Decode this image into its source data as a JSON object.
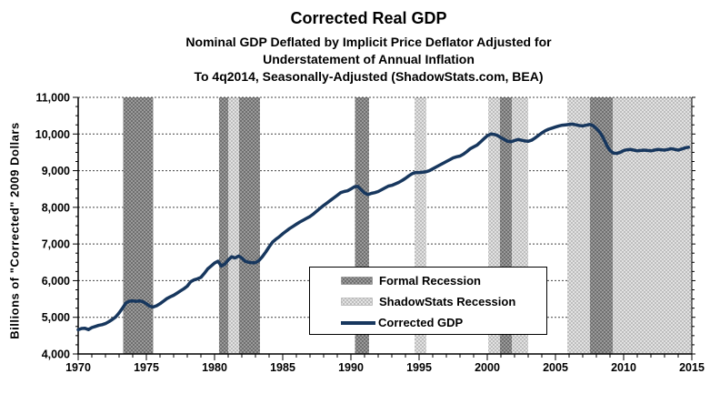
{
  "chart_data": {
    "type": "line",
    "title": "Corrected Real GDP",
    "subtitle_lines": [
      "Nominal GDP Deflated by Implicit Price Deflator Adjusted for",
      "Understatement of Annual Inflation",
      "To 4q2014, Seasonally-Adjusted (ShadowStats.com, BEA)"
    ],
    "ylabel": "Billions of \"Corrected\" 2009 Dollars",
    "xlabel": "",
    "x_range": [
      1970,
      2015
    ],
    "y_range": [
      4000,
      11000
    ],
    "x_major_tick_step": 5,
    "x_minor_tick_step": 1,
    "y_major_tick_step": 1000,
    "y_minor_tick_step": 250,
    "grid": "horizontal-dashed",
    "x_tick_labels": [
      "1970",
      "1975",
      "1980",
      "1985",
      "1990",
      "1995",
      "2000",
      "2005",
      "2010",
      "2015"
    ],
    "y_ticks": [
      {
        "v": 4000,
        "t": "4,000"
      },
      {
        "v": 5000,
        "t": "5,000"
      },
      {
        "v": 6000,
        "t": "6,000"
      },
      {
        "v": 7000,
        "t": "7,000"
      },
      {
        "v": 8000,
        "t": "8,000"
      },
      {
        "v": 9000,
        "t": "9,000"
      },
      {
        "v": 10000,
        "t": "10,000"
      },
      {
        "v": 11000,
        "t": "11,000"
      }
    ],
    "legend": {
      "position": "inside-lower-center",
      "items": [
        {
          "label": "Formal Recession",
          "swatch": "formal-pattern"
        },
        {
          "label": "ShadowStats Recession",
          "swatch": "shadow-pattern"
        },
        {
          "label": "Corrected GDP",
          "swatch": "line"
        }
      ]
    },
    "colors": {
      "line": "#17375E",
      "formal_dark": "#6f6f6f",
      "formal_light": "#9a9a9a",
      "shadow_dark": "#bdbdbd",
      "shadow_light": "#e2e2e2",
      "grid": "#444444",
      "axis": "#000000"
    },
    "formal_recessions": [
      [
        1973.3,
        1975.5
      ],
      [
        1980.33,
        1981.0
      ],
      [
        1981.8,
        1983.33
      ],
      [
        1990.3,
        1991.33
      ],
      [
        2000.93,
        2001.8
      ],
      [
        2007.53,
        2009.2
      ]
    ],
    "shadow_recessions": [
      [
        1981.0,
        1981.8
      ],
      [
        1994.67,
        1995.53
      ],
      [
        2000.07,
        2000.93
      ],
      [
        2001.8,
        2003.0
      ],
      [
        2005.87,
        2007.53
      ],
      [
        2009.2,
        2015.0
      ]
    ],
    "series": [
      {
        "name": "Corrected GDP",
        "points": [
          [
            1970.0,
            4660
          ],
          [
            1970.25,
            4695
          ],
          [
            1970.5,
            4700
          ],
          [
            1970.75,
            4665
          ],
          [
            1971.0,
            4720
          ],
          [
            1971.25,
            4750
          ],
          [
            1971.5,
            4780
          ],
          [
            1971.75,
            4800
          ],
          [
            1972.0,
            4830
          ],
          [
            1972.25,
            4880
          ],
          [
            1972.5,
            4940
          ],
          [
            1972.75,
            5010
          ],
          [
            1973.0,
            5120
          ],
          [
            1973.25,
            5250
          ],
          [
            1973.5,
            5390
          ],
          [
            1973.75,
            5440
          ],
          [
            1974.0,
            5450
          ],
          [
            1974.25,
            5435
          ],
          [
            1974.5,
            5450
          ],
          [
            1974.75,
            5425
          ],
          [
            1975.0,
            5370
          ],
          [
            1975.25,
            5300
          ],
          [
            1975.5,
            5280
          ],
          [
            1975.75,
            5315
          ],
          [
            1976.0,
            5370
          ],
          [
            1976.25,
            5440
          ],
          [
            1976.5,
            5510
          ],
          [
            1976.75,
            5560
          ],
          [
            1977.0,
            5600
          ],
          [
            1977.25,
            5660
          ],
          [
            1977.5,
            5720
          ],
          [
            1977.75,
            5780
          ],
          [
            1978.0,
            5850
          ],
          [
            1978.25,
            5970
          ],
          [
            1978.5,
            6020
          ],
          [
            1978.75,
            6050
          ],
          [
            1979.0,
            6090
          ],
          [
            1979.25,
            6200
          ],
          [
            1979.5,
            6320
          ],
          [
            1979.75,
            6400
          ],
          [
            1980.0,
            6480
          ],
          [
            1980.25,
            6530
          ],
          [
            1980.5,
            6400
          ],
          [
            1980.75,
            6450
          ],
          [
            1981.0,
            6560
          ],
          [
            1981.25,
            6650
          ],
          [
            1981.5,
            6620
          ],
          [
            1981.75,
            6670
          ],
          [
            1982.0,
            6620
          ],
          [
            1982.25,
            6530
          ],
          [
            1982.5,
            6500
          ],
          [
            1982.75,
            6490
          ],
          [
            1983.0,
            6490
          ],
          [
            1983.25,
            6550
          ],
          [
            1983.5,
            6650
          ],
          [
            1983.75,
            6780
          ],
          [
            1984.0,
            6920
          ],
          [
            1984.25,
            7050
          ],
          [
            1984.5,
            7130
          ],
          [
            1984.75,
            7200
          ],
          [
            1985.0,
            7280
          ],
          [
            1985.25,
            7350
          ],
          [
            1985.5,
            7420
          ],
          [
            1985.75,
            7480
          ],
          [
            1986.0,
            7540
          ],
          [
            1986.25,
            7600
          ],
          [
            1986.5,
            7650
          ],
          [
            1986.75,
            7700
          ],
          [
            1987.0,
            7750
          ],
          [
            1987.25,
            7820
          ],
          [
            1987.5,
            7900
          ],
          [
            1987.75,
            7980
          ],
          [
            1988.0,
            8050
          ],
          [
            1988.25,
            8120
          ],
          [
            1988.5,
            8190
          ],
          [
            1988.75,
            8260
          ],
          [
            1989.0,
            8330
          ],
          [
            1989.25,
            8400
          ],
          [
            1989.5,
            8430
          ],
          [
            1989.75,
            8450
          ],
          [
            1990.0,
            8500
          ],
          [
            1990.25,
            8560
          ],
          [
            1990.5,
            8570
          ],
          [
            1990.75,
            8480
          ],
          [
            1991.0,
            8390
          ],
          [
            1991.25,
            8350
          ],
          [
            1991.5,
            8380
          ],
          [
            1991.75,
            8400
          ],
          [
            1992.0,
            8430
          ],
          [
            1992.25,
            8480
          ],
          [
            1992.5,
            8530
          ],
          [
            1992.75,
            8580
          ],
          [
            1993.0,
            8600
          ],
          [
            1993.25,
            8640
          ],
          [
            1993.5,
            8680
          ],
          [
            1993.75,
            8730
          ],
          [
            1994.0,
            8790
          ],
          [
            1994.25,
            8860
          ],
          [
            1994.5,
            8920
          ],
          [
            1994.75,
            8950
          ],
          [
            1995.0,
            8950
          ],
          [
            1995.25,
            8960
          ],
          [
            1995.5,
            8970
          ],
          [
            1995.75,
            9000
          ],
          [
            1996.0,
            9050
          ],
          [
            1996.25,
            9100
          ],
          [
            1996.5,
            9150
          ],
          [
            1996.75,
            9200
          ],
          [
            1997.0,
            9250
          ],
          [
            1997.25,
            9300
          ],
          [
            1997.5,
            9350
          ],
          [
            1997.75,
            9380
          ],
          [
            1998.0,
            9400
          ],
          [
            1998.25,
            9450
          ],
          [
            1998.5,
            9520
          ],
          [
            1998.75,
            9600
          ],
          [
            1999.0,
            9650
          ],
          [
            1999.25,
            9700
          ],
          [
            1999.5,
            9780
          ],
          [
            1999.75,
            9870
          ],
          [
            2000.0,
            9950
          ],
          [
            2000.25,
            10000
          ],
          [
            2000.5,
            9990
          ],
          [
            2000.75,
            9960
          ],
          [
            2001.0,
            9900
          ],
          [
            2001.25,
            9850
          ],
          [
            2001.5,
            9800
          ],
          [
            2001.75,
            9790
          ],
          [
            2002.0,
            9820
          ],
          [
            2002.25,
            9850
          ],
          [
            2002.5,
            9830
          ],
          [
            2002.75,
            9810
          ],
          [
            2003.0,
            9800
          ],
          [
            2003.25,
            9830
          ],
          [
            2003.5,
            9890
          ],
          [
            2003.75,
            9960
          ],
          [
            2004.0,
            10030
          ],
          [
            2004.25,
            10090
          ],
          [
            2004.5,
            10130
          ],
          [
            2004.75,
            10160
          ],
          [
            2005.0,
            10190
          ],
          [
            2005.25,
            10220
          ],
          [
            2005.5,
            10240
          ],
          [
            2005.75,
            10250
          ],
          [
            2006.0,
            10260
          ],
          [
            2006.25,
            10270
          ],
          [
            2006.5,
            10250
          ],
          [
            2006.75,
            10230
          ],
          [
            2007.0,
            10220
          ],
          [
            2007.25,
            10240
          ],
          [
            2007.5,
            10260
          ],
          [
            2007.75,
            10230
          ],
          [
            2008.0,
            10150
          ],
          [
            2008.25,
            10050
          ],
          [
            2008.5,
            9900
          ],
          [
            2008.75,
            9700
          ],
          [
            2009.0,
            9550
          ],
          [
            2009.25,
            9480
          ],
          [
            2009.5,
            9470
          ],
          [
            2009.75,
            9500
          ],
          [
            2010.0,
            9550
          ],
          [
            2010.25,
            9570
          ],
          [
            2010.5,
            9580
          ],
          [
            2010.75,
            9560
          ],
          [
            2011.0,
            9540
          ],
          [
            2011.25,
            9550
          ],
          [
            2011.5,
            9560
          ],
          [
            2011.75,
            9550
          ],
          [
            2012.0,
            9540
          ],
          [
            2012.25,
            9560
          ],
          [
            2012.5,
            9580
          ],
          [
            2012.75,
            9570
          ],
          [
            2013.0,
            9560
          ],
          [
            2013.25,
            9580
          ],
          [
            2013.5,
            9600
          ],
          [
            2013.75,
            9580
          ],
          [
            2014.0,
            9560
          ],
          [
            2014.25,
            9590
          ],
          [
            2014.5,
            9620
          ],
          [
            2014.75,
            9640
          ]
        ]
      }
    ]
  }
}
